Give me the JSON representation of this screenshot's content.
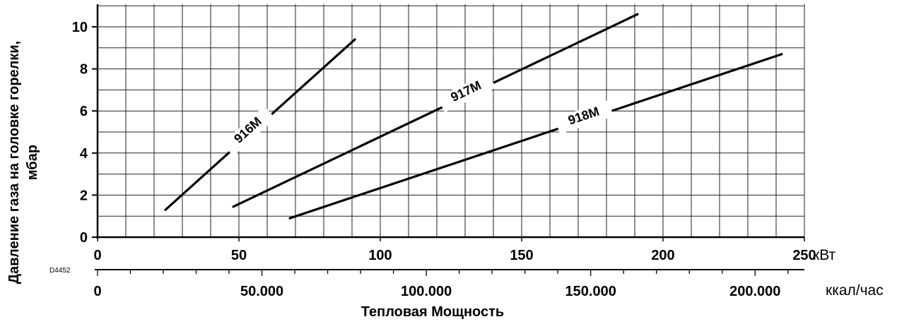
{
  "chart_data": {
    "type": "line",
    "ylabel_line1": "Давление газа на головке горелки,",
    "ylabel_line2": "мбар",
    "xlabel": "Тепловая Мощность",
    "x_unit_kw": "кВт",
    "x_unit_kcal": "ккал/час",
    "code_label": "D4452",
    "xlim_kw": [
      0,
      250
    ],
    "ylim": [
      0,
      11
    ],
    "x_ticks_kw": [
      0,
      50,
      100,
      150,
      200,
      250
    ],
    "x_tick_labels_kw": [
      "0",
      "50",
      "100",
      "150",
      "200",
      "250"
    ],
    "y_ticks": [
      0,
      2,
      4,
      6,
      8,
      10
    ],
    "y_tick_labels": [
      "0",
      "2",
      "4",
      "6",
      "8",
      "10"
    ],
    "x_ticks_kcal": [
      0,
      50000,
      100000,
      150000,
      200000
    ],
    "x_tick_labels_kcal": [
      "0",
      "50.000",
      "100.000",
      "150.000",
      "200.000"
    ],
    "grid": true,
    "series": [
      {
        "name": "916M",
        "x": [
          24,
          91
        ],
        "y": [
          1.3,
          9.4
        ]
      },
      {
        "name": "917M",
        "x": [
          48,
          191
        ],
        "y": [
          1.45,
          10.6
        ]
      },
      {
        "name": "918M",
        "x": [
          68,
          242
        ],
        "y": [
          0.9,
          8.7
        ]
      }
    ]
  }
}
